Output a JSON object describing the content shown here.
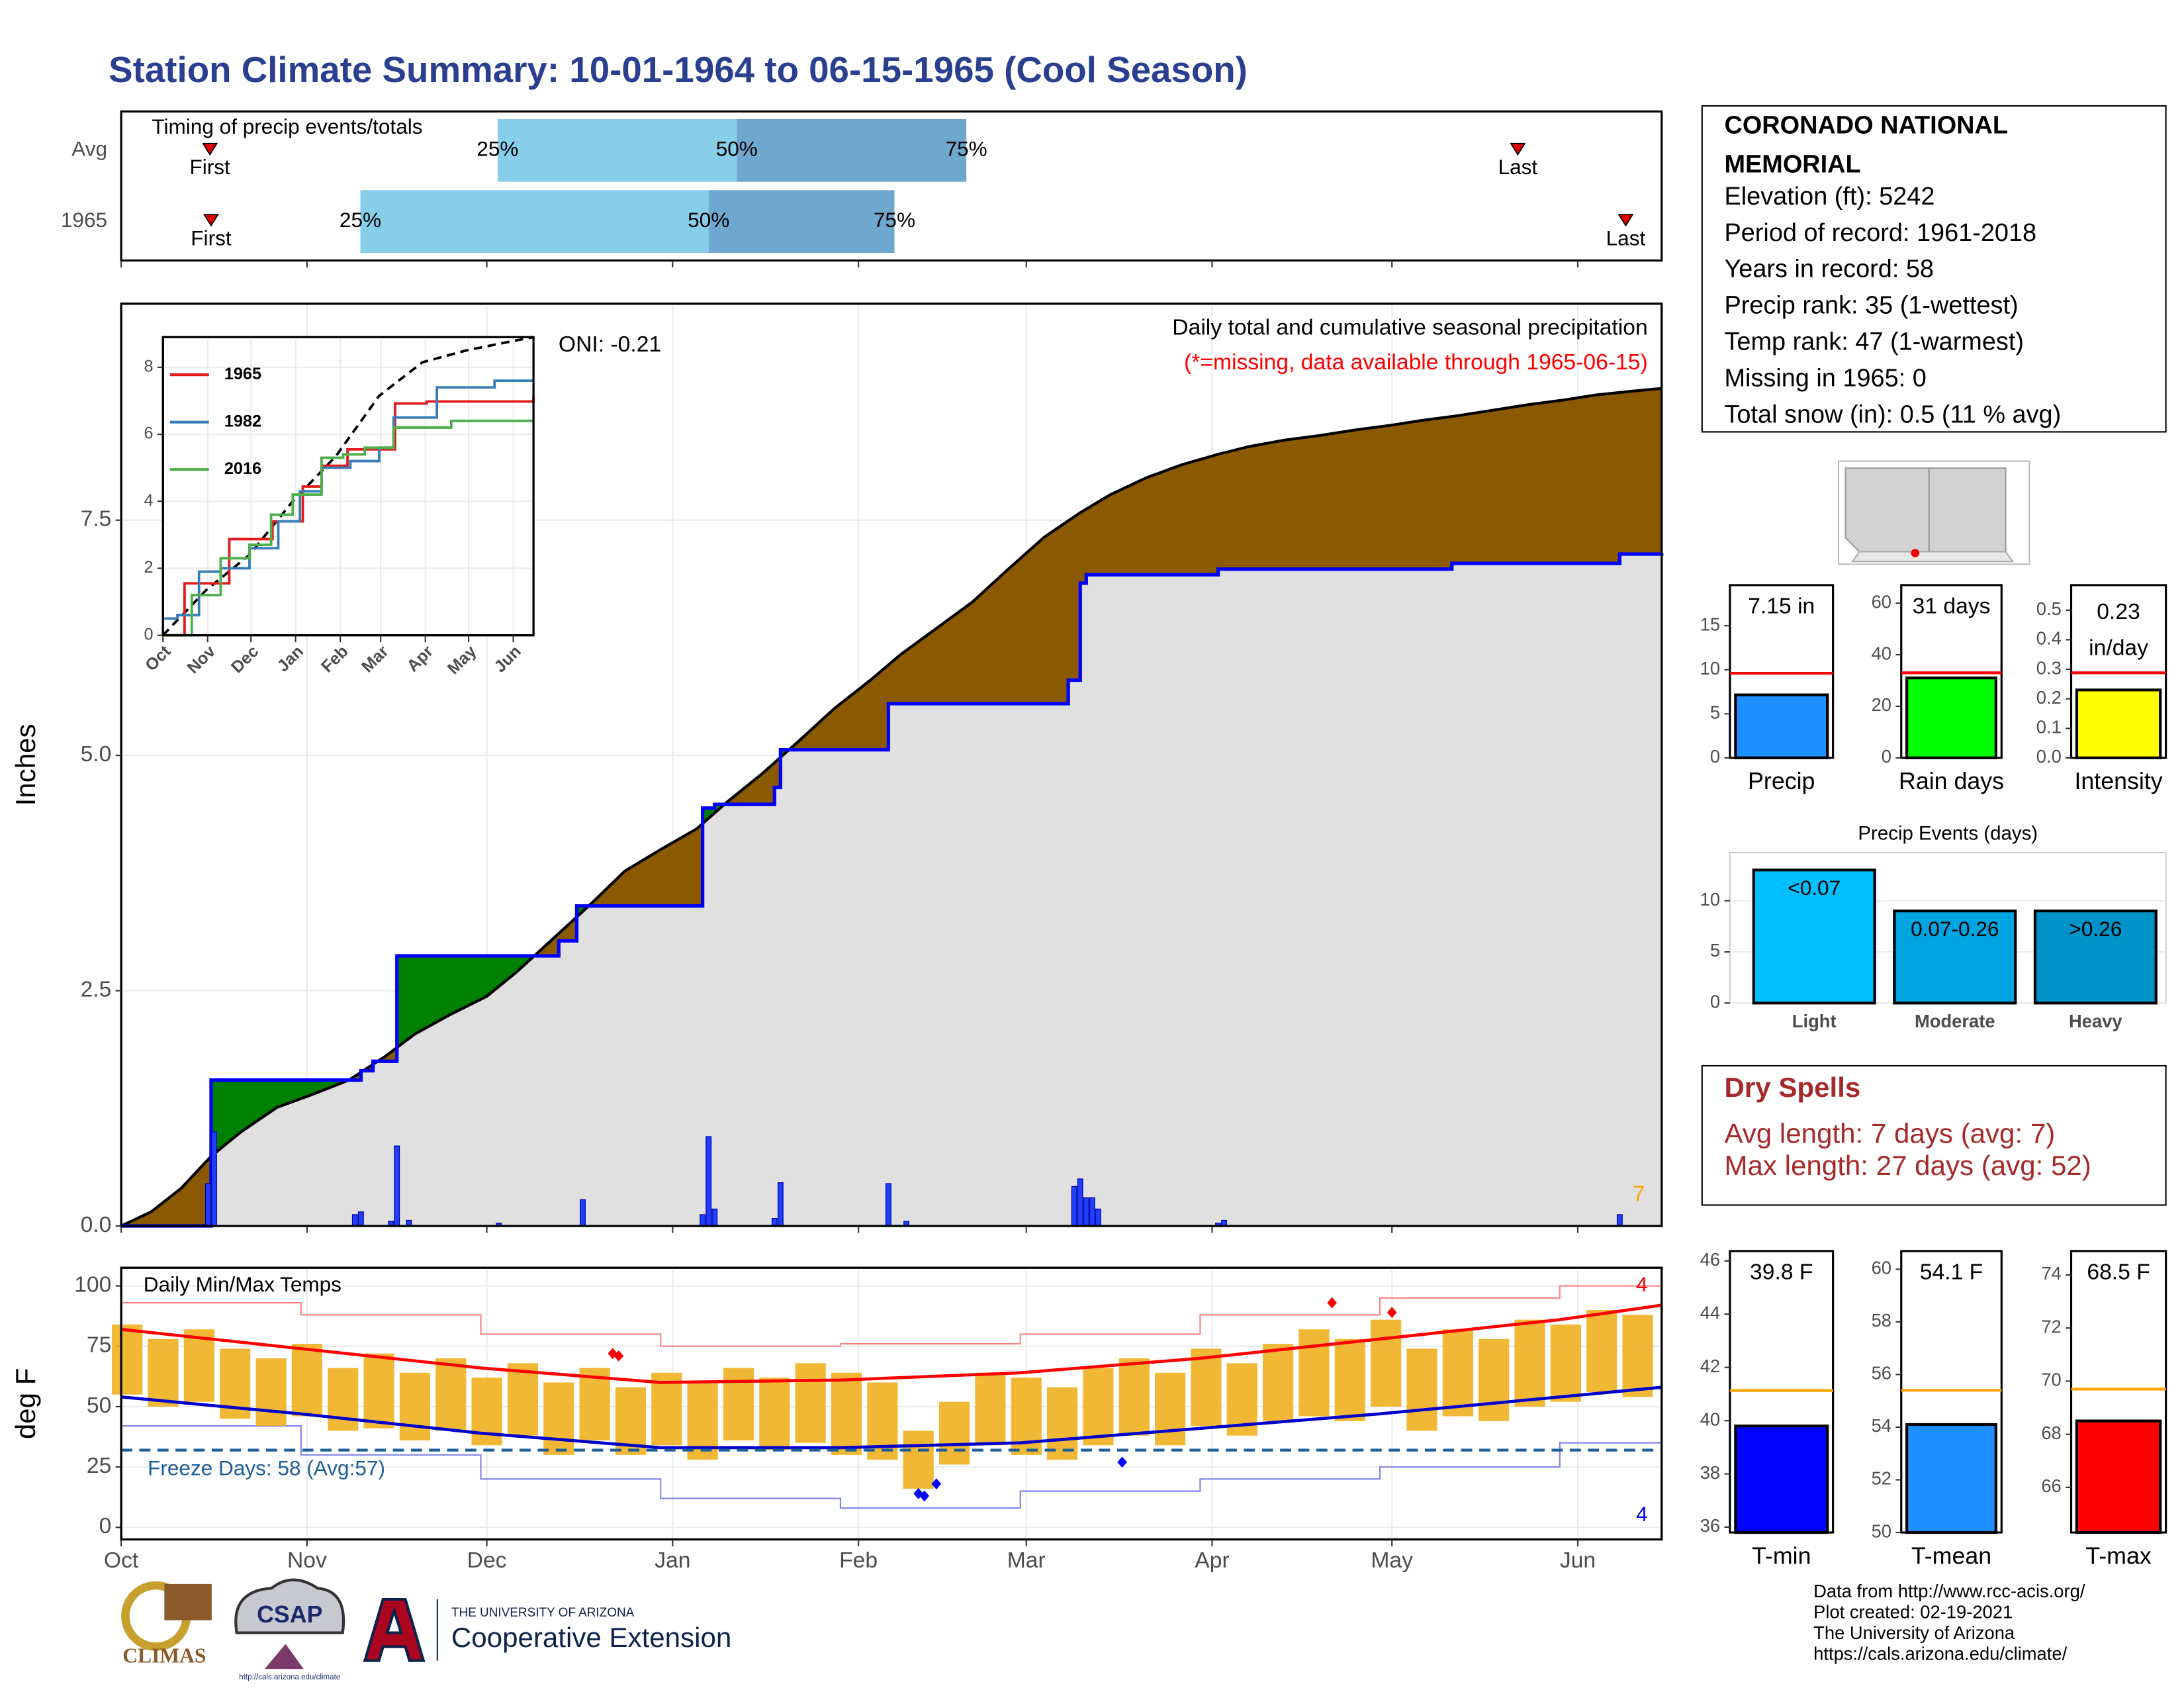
{
  "title": "Station Climate Summary: 10-01-1964 to 06-15-1965 (Cool Season)",
  "station": {
    "name_lines": [
      "CORONADO NATIONAL",
      "MEMORIAL"
    ],
    "lines": [
      "Elevation (ft): 5242",
      "Period of record: 1961-2018",
      "Years in record: 58",
      "Precip rank: 35 (1-wettest)",
      "Temp rank: 47 (1-warmest)",
      "Missing in 1965: 0",
      "Total snow (in): 0.5 (11 % avg)"
    ]
  },
  "dry_spells": {
    "title": "Dry Spells",
    "lines": [
      "Avg length: 7 days (avg: 7)",
      "Max length: 27 days (avg: 52)"
    ]
  },
  "footer": {
    "logos": [
      "CLIMAS",
      "CSAP",
      "http://cals.arizona.edu/climate",
      "THE UNIVERSITY OF ARIZONA",
      "Cooperative Extension"
    ],
    "credits": [
      "Data from http://www.rcc-acis.org/",
      "Plot created: 02-19-2021",
      "The University of Arizona",
      "https://cals.arizona.edu/climate/"
    ]
  },
  "chart_data": [
    {
      "type": "timing",
      "title": "Timing of precip events/totals",
      "xlim": [
        0,
        257
      ],
      "xticks": [
        0,
        31,
        61,
        92,
        123,
        151,
        182,
        212,
        243
      ],
      "first_label": "First",
      "last_label": "Last",
      "quartile_labels": [
        "25%",
        "50%",
        "75%"
      ],
      "light_color": "#87ceeb",
      "dark_color": "#6fa8cf",
      "marker_color": "#dd0000",
      "rows": [
        {
          "name": "Avg",
          "first": 14.8,
          "last": 233,
          "quartiles": [
            62.8,
            102.7,
            141
          ]
        },
        {
          "name": "1965",
          "first": 15,
          "last": 251,
          "quartiles": [
            39.9,
            98,
            129
          ]
        }
      ]
    },
    {
      "type": "cumulative",
      "title": "Daily total and cumulative seasonal precipitation",
      "subtitle": "(*=missing, data available through 1965-06-15)",
      "annotation": "ONI: -0.21",
      "count_label": "7",
      "y_label": "Inches",
      "grid": true,
      "xlim": [
        0,
        257
      ],
      "xticks": [
        0,
        31,
        61,
        92,
        123,
        151,
        182,
        212,
        243
      ],
      "ylim": [
        0,
        9.8
      ],
      "yticks": [
        {
          "value": 0,
          "label": "0.0"
        },
        {
          "value": 2.5,
          "label": "2.5"
        },
        {
          "value": 5,
          "label": "5.0"
        },
        {
          "value": 7.5,
          "label": "7.5"
        }
      ],
      "above_color": "#008000",
      "below_color": "#8b5a00",
      "base_color": "#e0e0e0",
      "observed": {
        "color": "#0000ff",
        "x": [
          0,
          15,
          40,
          42,
          46,
          73,
          76,
          97,
          99,
          109,
          110,
          128,
          158,
          160,
          161,
          183,
          222,
          250,
          257
        ],
        "values": [
          0,
          1.55,
          1.65,
          1.75,
          2.87,
          3.03,
          3.4,
          4.44,
          4.48,
          4.66,
          5.06,
          5.55,
          5.8,
          6.83,
          6.92,
          6.98,
          7.04,
          7.14,
          7.15
        ]
      },
      "average": {
        "color": "#000000",
        "x": [
          0,
          5,
          10,
          15,
          20,
          26,
          32,
          38,
          44,
          49,
          55,
          61,
          66,
          72,
          78,
          84,
          90,
          96,
          101,
          107,
          113,
          119,
          125,
          130,
          136,
          142,
          148,
          154,
          160,
          165,
          171,
          177,
          183,
          188,
          194,
          200,
          206,
          212,
          217,
          223,
          229,
          235,
          241,
          246,
          252,
          257
        ],
        "values": [
          0,
          0.15,
          0.4,
          0.74,
          1.0,
          1.26,
          1.4,
          1.55,
          1.8,
          2.04,
          2.25,
          2.44,
          2.7,
          3.05,
          3.4,
          3.77,
          4.0,
          4.22,
          4.5,
          4.81,
          5.15,
          5.5,
          5.8,
          6.07,
          6.35,
          6.63,
          6.98,
          7.32,
          7.58,
          7.77,
          7.95,
          8.09,
          8.2,
          8.28,
          8.35,
          8.4,
          8.46,
          8.51,
          8.56,
          8.61,
          8.67,
          8.73,
          8.78,
          8.83,
          8.87,
          8.9
        ]
      },
      "daily": {
        "color": "#1f3fff",
        "x": [
          14.5,
          15.5,
          39,
          40,
          45,
          46,
          48,
          63,
          77,
          97,
          98,
          99,
          109,
          110,
          128,
          131,
          159,
          160,
          161,
          162,
          163,
          183,
          184,
          250
        ],
        "values": [
          0.45,
          1.0,
          0.12,
          0.15,
          0.05,
          0.85,
          0.06,
          0.03,
          0.28,
          0.12,
          0.95,
          0.18,
          0.08,
          0.46,
          0.45,
          0.05,
          0.42,
          0.5,
          0.3,
          0.3,
          0.18,
          0.03,
          0.06,
          0.12
        ]
      }
    },
    {
      "type": "line",
      "xlim": [
        0,
        257
      ],
      "ylim": [
        0,
        8.9
      ],
      "yticks": [
        0,
        2,
        4,
        6,
        8
      ],
      "xticks": [
        {
          "value": 0,
          "label": "Oct"
        },
        {
          "value": 31,
          "label": "Nov"
        },
        {
          "value": 61,
          "label": "Dec"
        },
        {
          "value": 92,
          "label": "Jan"
        },
        {
          "value": 123,
          "label": "Feb"
        },
        {
          "value": 151,
          "label": "Mar"
        },
        {
          "value": 182,
          "label": "Apr"
        },
        {
          "value": 212,
          "label": "May"
        },
        {
          "value": 243,
          "label": "Jun"
        }
      ],
      "series": [
        {
          "name": "1965",
          "color": "#e41a1c",
          "x": [
            0,
            15,
            46,
            76,
            97,
            110,
            128,
            161,
            183,
            257
          ],
          "values": [
            0,
            1.55,
            2.87,
            3.4,
            4.44,
            5.06,
            5.55,
            6.92,
            6.98,
            7.15
          ]
        },
        {
          "name": "1982",
          "color": "#377eb8",
          "x": [
            0,
            10,
            25,
            40,
            60,
            80,
            95,
            110,
            130,
            150,
            160,
            190,
            230,
            257
          ],
          "values": [
            0.5,
            0.6,
            1.9,
            2.0,
            2.6,
            3.4,
            4.3,
            5.0,
            5.2,
            5.6,
            6.5,
            7.4,
            7.6,
            7.6
          ]
        },
        {
          "name": "2016",
          "color": "#4daf4a",
          "x": [
            0,
            20,
            40,
            60,
            75,
            90,
            110,
            125,
            140,
            160,
            200,
            257
          ],
          "values": [
            0,
            1.2,
            2.3,
            2.7,
            3.6,
            4.2,
            5.3,
            5.4,
            5.6,
            6.2,
            6.4,
            6.4
          ]
        }
      ],
      "average": {
        "color": "#000000",
        "x": [
          0,
          30,
          60,
          90,
          120,
          150,
          180,
          210,
          240,
          257
        ],
        "values": [
          0,
          1.35,
          2.4,
          4.0,
          5.35,
          7.15,
          8.15,
          8.5,
          8.76,
          8.9
        ]
      }
    },
    {
      "type": "temperature",
      "title": "Daily Min/Max Temps",
      "annotation": "Freeze Days: 58 (Avg:57)",
      "y_label": "deg F",
      "grid": true,
      "xlim": [
        0,
        257
      ],
      "ylim": [
        -5,
        107.5
      ],
      "yticks": [
        0,
        25,
        50,
        75,
        100
      ],
      "xticks": [
        {
          "value": 0,
          "label": "Oct"
        },
        {
          "value": 31,
          "label": "Nov"
        },
        {
          "value": 61,
          "label": "Dec"
        },
        {
          "value": 92,
          "label": "Jan"
        },
        {
          "value": 123,
          "label": "Feb"
        },
        {
          "value": 151,
          "label": "Mar"
        },
        {
          "value": 182,
          "label": "Apr"
        },
        {
          "value": 212,
          "label": "May"
        },
        {
          "value": 243,
          "label": "Jun"
        }
      ],
      "freeze": 32,
      "freeze_color": "#1f5f99",
      "bar_color": "#f0b020",
      "record_count_labels": [
        "4",
        "4"
      ],
      "daily": {
        "x": [
          1,
          7,
          13,
          19,
          25,
          31,
          37,
          43,
          49,
          55,
          61,
          67,
          73,
          79,
          85,
          91,
          97,
          103,
          109,
          115,
          121,
          127,
          133,
          139,
          145,
          151,
          157,
          163,
          169,
          175,
          181,
          187,
          193,
          199,
          205,
          211,
          217,
          223,
          229,
          235,
          241,
          247,
          253
        ],
        "max": [
          84,
          78,
          82,
          74,
          70,
          76,
          66,
          72,
          64,
          70,
          62,
          68,
          60,
          66,
          58,
          64,
          60,
          66,
          62,
          68,
          64,
          60,
          40,
          52,
          64,
          62,
          58,
          66,
          70,
          64,
          74,
          68,
          76,
          82,
          78,
          86,
          74,
          82,
          78,
          86,
          84,
          90,
          88
        ],
        "min": [
          55,
          50,
          52,
          45,
          42,
          46,
          40,
          41,
          36,
          40,
          34,
          38,
          30,
          36,
          30,
          34,
          28,
          36,
          32,
          35,
          30,
          28,
          16,
          26,
          34,
          30,
          28,
          34,
          38,
          34,
          42,
          38,
          44,
          46,
          44,
          50,
          40,
          46,
          44,
          50,
          52,
          56,
          54
        ]
      },
      "normal_max": {
        "color": "#ff0000",
        "x": [
          0,
          30,
          60,
          90,
          120,
          150,
          180,
          210,
          240,
          257
        ],
        "values": [
          82,
          74,
          66,
          60,
          61,
          64,
          70,
          78,
          86,
          92
        ]
      },
      "normal_min": {
        "color": "#0000cc",
        "x": [
          0,
          30,
          60,
          90,
          120,
          150,
          180,
          210,
          240,
          257
        ],
        "values": [
          54,
          47,
          39,
          33,
          33,
          35,
          41,
          47,
          54,
          58
        ]
      },
      "record_max": {
        "color": "#ff8080",
        "x": [
          0,
          30,
          60,
          90,
          120,
          150,
          180,
          210,
          240,
          257
        ],
        "values": [
          93,
          88,
          80,
          75,
          76,
          80,
          88,
          95,
          100,
          103
        ]
      },
      "record_min": {
        "color": "#8080ee",
        "x": [
          0,
          30,
          60,
          90,
          120,
          150,
          180,
          210,
          240,
          257
        ],
        "values": [
          42,
          30,
          20,
          12,
          8,
          15,
          20,
          25,
          35,
          45
        ]
      },
      "record_highs": {
        "color": "#ff0000",
        "x": [
          82,
          83,
          202,
          212
        ],
        "values": [
          72,
          71,
          93,
          89
        ]
      },
      "record_lows": {
        "color": "#0000ff",
        "x": [
          133,
          134,
          136,
          167
        ],
        "values": [
          14,
          13,
          18,
          27
        ]
      }
    },
    {
      "type": "summary-bar",
      "title": "Precip",
      "value": 7.15,
      "value_label": "7.15 in",
      "avg": 9.6,
      "ylim": [
        0,
        19.6
      ],
      "yticks": [
        0,
        5,
        10,
        15
      ],
      "color": "#1e90ff",
      "avg_color": "#ff0000"
    },
    {
      "type": "summary-bar",
      "title": "Rain days",
      "value": 31,
      "value_label": "31 days",
      "avg": 33,
      "ylim": [
        0,
        67
      ],
      "yticks": [
        0,
        20,
        40,
        60
      ],
      "color": "#00ff00",
      "avg_color": "#ff0000"
    },
    {
      "type": "summary-bar",
      "title": "Intensity",
      "value": 0.23,
      "value_label": [
        "0.23",
        "in/day"
      ],
      "avg": 0.288,
      "ylim": [
        0,
        0.585
      ],
      "yticks": [
        {
          "value": 0,
          "label": "0.0"
        },
        0.1,
        0.2,
        0.3,
        0.4,
        0.5
      ],
      "color": "#ffff00",
      "avg_color": "#ff0000"
    },
    {
      "type": "bar",
      "title": "Precip Events (days)",
      "categories": [
        "Light",
        "Moderate",
        "Heavy"
      ],
      "values": [
        13,
        9,
        9
      ],
      "bar_labels": [
        "<0.07",
        "0.07-0.26",
        ">0.26"
      ],
      "colors": [
        "#00bfff",
        "#00a4e0",
        "#0093c8"
      ],
      "ylim": [
        0,
        14.7
      ],
      "yticks": [
        0,
        5,
        10
      ],
      "grid": true
    },
    {
      "type": "summary-bar",
      "title": "T-min",
      "value": 39.8,
      "value_label": "39.8 F",
      "avg": 41.13,
      "ylim": [
        35.8,
        46.37
      ],
      "yticks": [
        36,
        38,
        40,
        42,
        44,
        46
      ],
      "color": "#0000ff",
      "avg_color": "#ffa500"
    },
    {
      "type": "summary-bar",
      "title": "T-mean",
      "value": 54.1,
      "value_label": "54.1 F",
      "avg": 55.4,
      "ylim": [
        50,
        60.69
      ],
      "yticks": [
        50,
        52,
        54,
        56,
        58,
        60
      ],
      "color": "#1e90ff",
      "avg_color": "#ffa500"
    },
    {
      "type": "summary-bar",
      "title": "T-max",
      "value": 68.5,
      "value_label": "68.5 F",
      "avg": 69.7,
      "ylim": [
        64.3,
        74.9
      ],
      "yticks": [
        66,
        68,
        70,
        72,
        74
      ],
      "color": "#ff0000",
      "avg_color": "#ffa500"
    }
  ]
}
